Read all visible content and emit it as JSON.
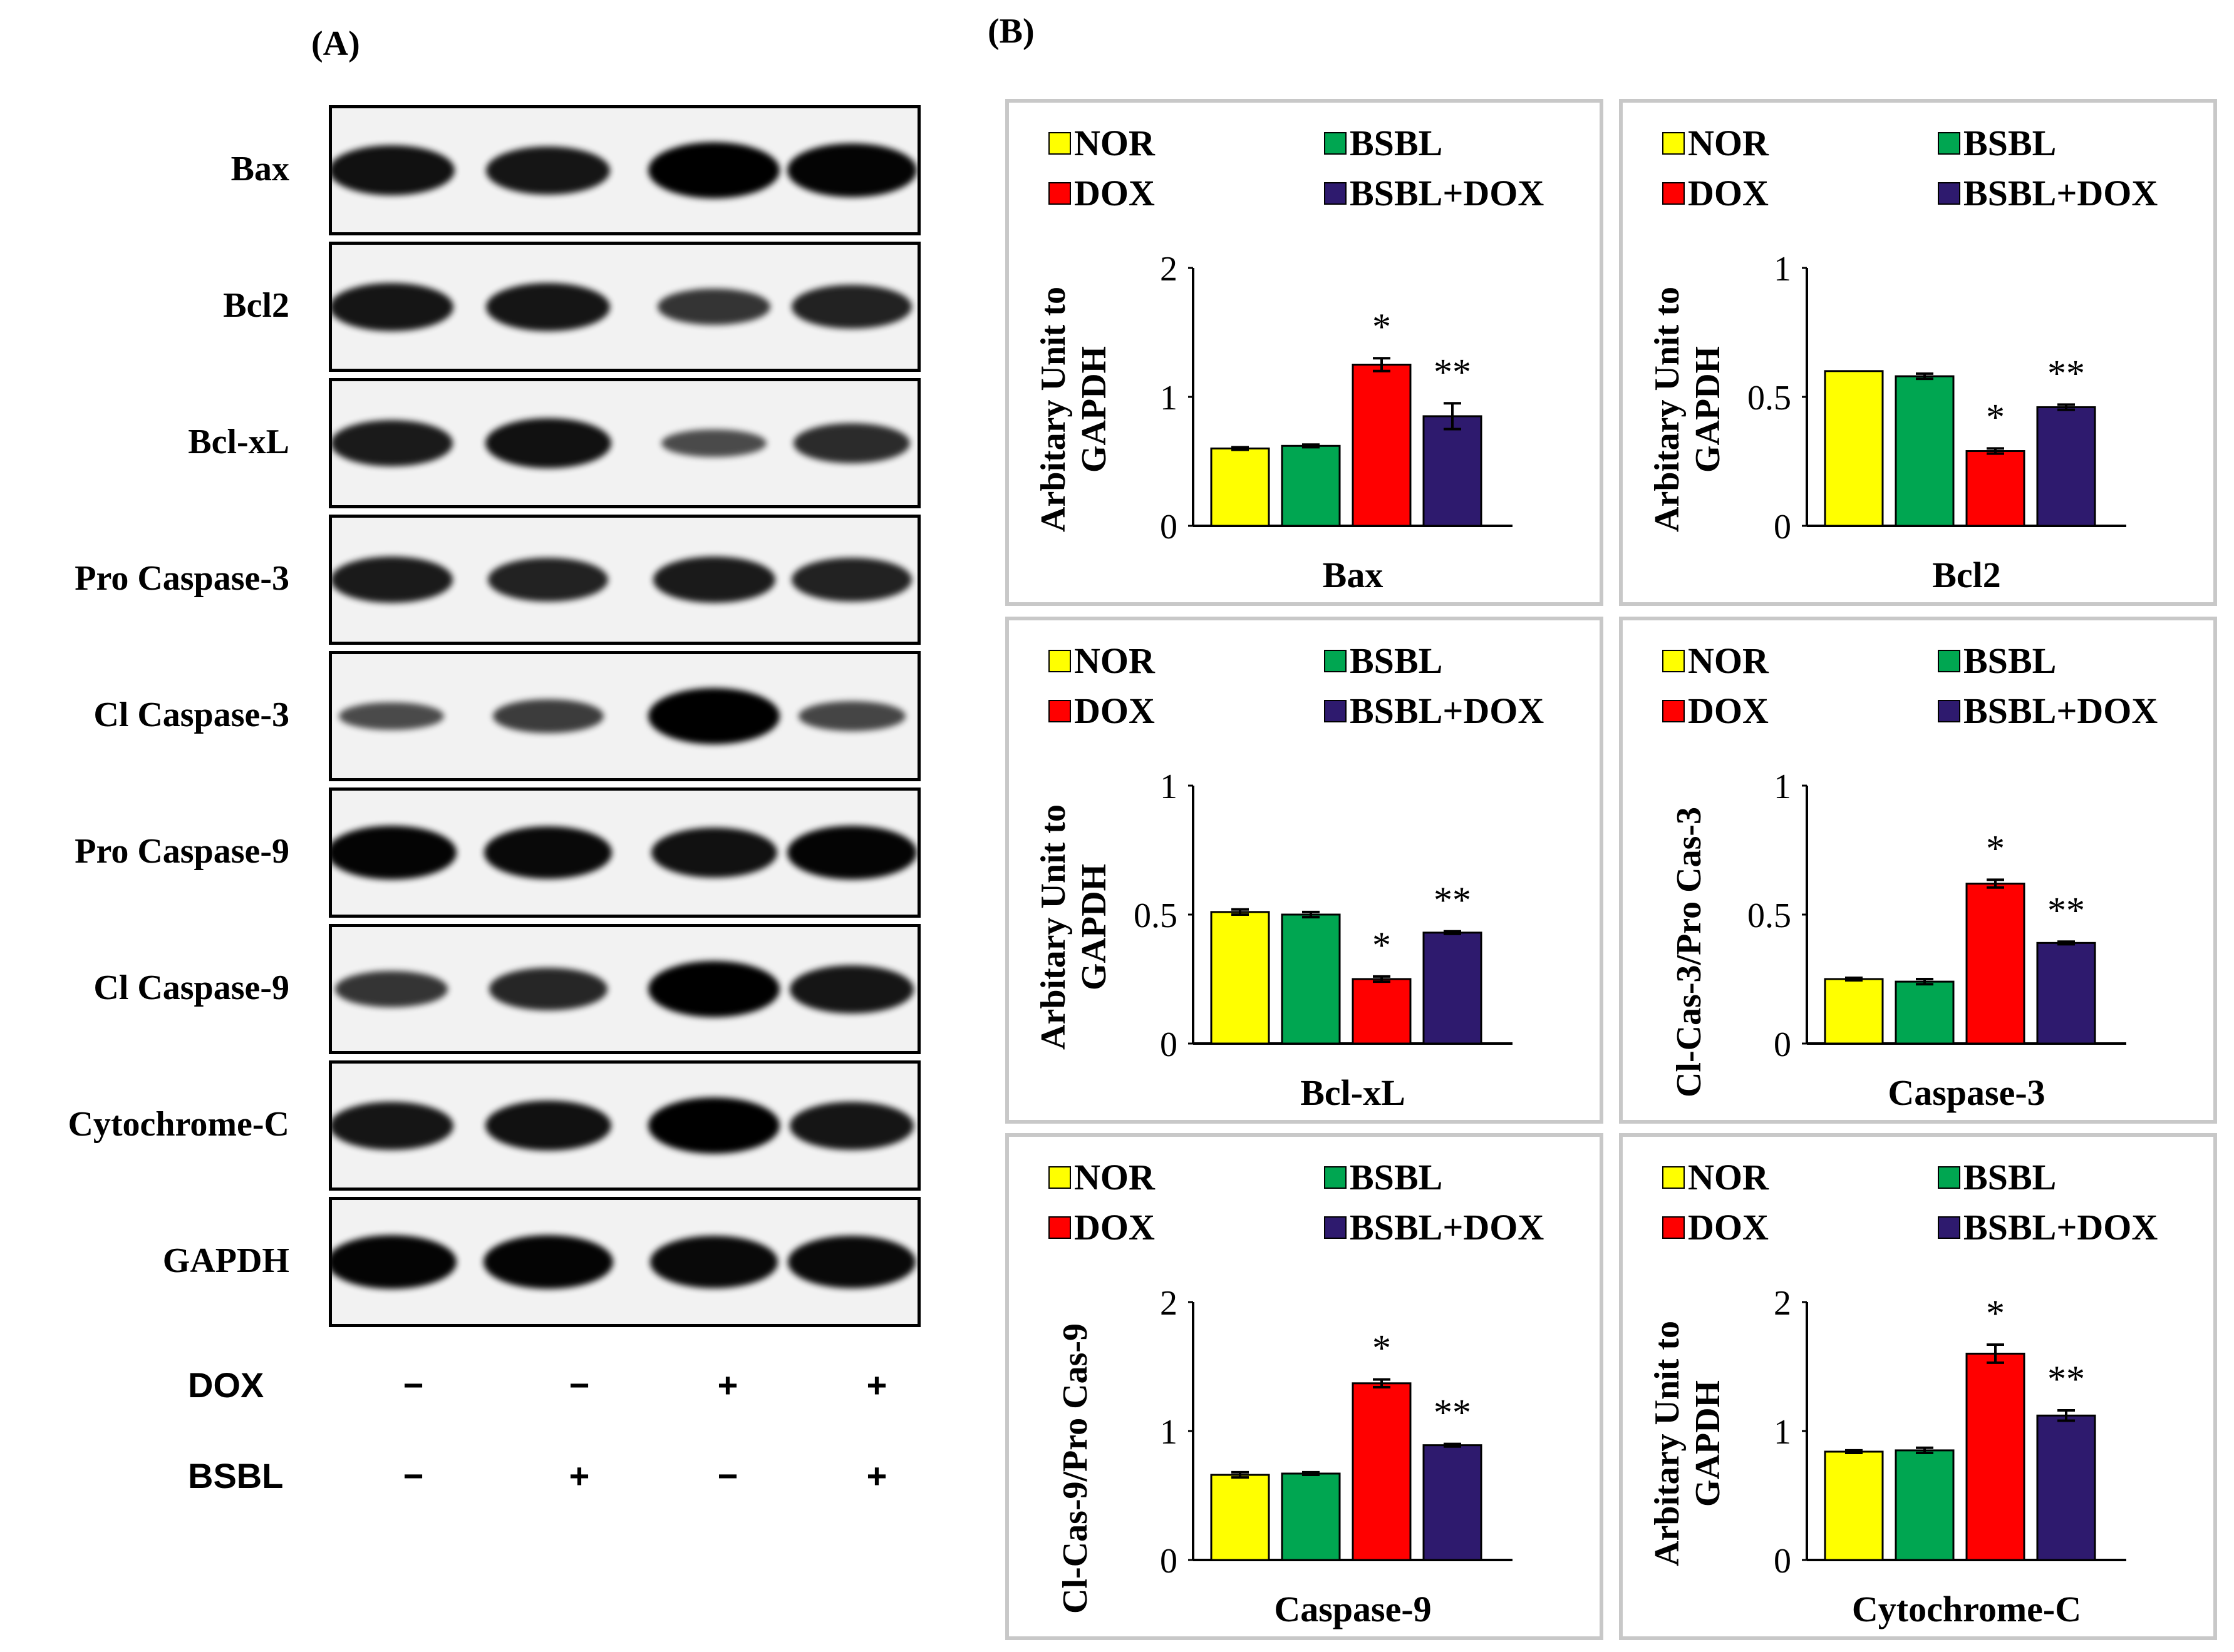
{
  "panel_a": {
    "label": "(A)",
    "blots": [
      {
        "name": "Bax",
        "intensities": [
          0.85,
          0.8,
          1.0,
          0.95
        ]
      },
      {
        "name": "Bcl2",
        "intensities": [
          0.8,
          0.8,
          0.5,
          0.7
        ]
      },
      {
        "name": "Bcl-xL",
        "intensities": [
          0.75,
          0.85,
          0.3,
          0.6
        ]
      },
      {
        "name": "Pro Caspase-3",
        "intensities": [
          0.75,
          0.7,
          0.75,
          0.7
        ]
      },
      {
        "name": "Cl Caspase-3",
        "intensities": [
          0.3,
          0.45,
          1.0,
          0.35
        ]
      },
      {
        "name": "Pro Caspase-9",
        "intensities": [
          0.95,
          0.9,
          0.85,
          0.95
        ]
      },
      {
        "name": "Cl Caspase-9",
        "intensities": [
          0.5,
          0.65,
          1.0,
          0.8
        ]
      },
      {
        "name": "Cytochrome-C",
        "intensities": [
          0.8,
          0.85,
          1.0,
          0.8
        ]
      },
      {
        "name": "GAPDH",
        "intensities": [
          0.95,
          0.95,
          0.9,
          0.9
        ]
      }
    ],
    "treatments": [
      {
        "name": "DOX",
        "values": [
          "−",
          "−",
          "+",
          "+"
        ]
      },
      {
        "name": "BSBL",
        "values": [
          "−",
          "+",
          "−",
          "+"
        ]
      }
    ]
  },
  "panel_b": {
    "label": "(B)"
  },
  "colors": {
    "NOR": "#ffff00",
    "BSBL": "#00a651",
    "DOX": "#ff0000",
    "BSBL+DOX": "#2e1a6e"
  },
  "chart_data": [
    {
      "type": "bar",
      "title": "Bax",
      "xlabel": "Bax",
      "ylabel": [
        "Arbitary Unit to",
        "GAPDH"
      ],
      "ylim": [
        0,
        2
      ],
      "yticks": [
        0,
        1,
        2
      ],
      "categories": [
        "NOR",
        "BSBL",
        "DOX",
        "BSBL+DOX"
      ],
      "values": [
        0.6,
        0.62,
        1.25,
        0.85
      ],
      "errors": [
        0.01,
        0.01,
        0.05,
        0.1
      ],
      "annotations": [
        "",
        "",
        "*",
        "**"
      ]
    },
    {
      "type": "bar",
      "title": "Bcl2",
      "xlabel": "Bcl2",
      "ylabel": [
        "Arbitary Unit to",
        "GAPDH"
      ],
      "ylim": [
        0,
        1
      ],
      "yticks": [
        0,
        0.5,
        1
      ],
      "categories": [
        "NOR",
        "BSBL",
        "DOX",
        "BSBL+DOX"
      ],
      "values": [
        0.6,
        0.58,
        0.29,
        0.46
      ],
      "errors": [
        0.0,
        0.01,
        0.01,
        0.01
      ],
      "annotations": [
        "",
        "",
        "*",
        "**"
      ]
    },
    {
      "type": "bar",
      "title": "Bcl-xL",
      "xlabel": "Bcl-xL",
      "ylabel": [
        "Arbitary Unit to",
        "GAPDH"
      ],
      "ylim": [
        0,
        1
      ],
      "yticks": [
        0,
        0.5,
        1
      ],
      "categories": [
        "NOR",
        "BSBL",
        "DOX",
        "BSBL+DOX"
      ],
      "values": [
        0.51,
        0.5,
        0.25,
        0.43
      ],
      "errors": [
        0.01,
        0.01,
        0.01,
        0.005
      ],
      "annotations": [
        "",
        "",
        "*",
        "**"
      ]
    },
    {
      "type": "bar",
      "title": "Caspase-3",
      "xlabel": "Caspase-3",
      "ylabel": [
        "Cl-Cas-3/Pro Cas-3"
      ],
      "ylim": [
        0,
        1
      ],
      "yticks": [
        0,
        0.5,
        1
      ],
      "categories": [
        "NOR",
        "BSBL",
        "DOX",
        "BSBL+DOX"
      ],
      "values": [
        0.25,
        0.24,
        0.62,
        0.39
      ],
      "errors": [
        0.005,
        0.01,
        0.015,
        0.005
      ],
      "annotations": [
        "",
        "",
        "*",
        "**"
      ]
    },
    {
      "type": "bar",
      "title": "Caspase-9",
      "xlabel": "Caspase-9",
      "ylabel": [
        "Cl-Cas-9/Pro Cas-9"
      ],
      "ylim": [
        0,
        2
      ],
      "yticks": [
        0,
        1,
        2
      ],
      "categories": [
        "NOR",
        "BSBL",
        "DOX",
        "BSBL+DOX"
      ],
      "values": [
        0.66,
        0.67,
        1.37,
        0.89
      ],
      "errors": [
        0.02,
        0.01,
        0.03,
        0.01
      ],
      "annotations": [
        "",
        "",
        "*",
        "**"
      ]
    },
    {
      "type": "bar",
      "title": "Cytochrome-C",
      "xlabel": "Cytochrome-C",
      "ylabel": [
        "Arbitary Unit to",
        "GAPDH"
      ],
      "ylim": [
        0,
        2
      ],
      "yticks": [
        0,
        1,
        2
      ],
      "categories": [
        "NOR",
        "BSBL",
        "DOX",
        "BSBL+DOX"
      ],
      "values": [
        0.84,
        0.85,
        1.6,
        1.12
      ],
      "errors": [
        0.01,
        0.02,
        0.07,
        0.04
      ],
      "annotations": [
        "",
        "",
        "*",
        "**"
      ]
    }
  ]
}
